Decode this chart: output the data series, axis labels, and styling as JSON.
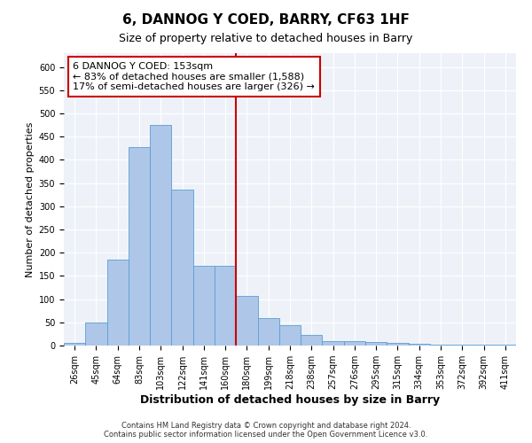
{
  "title": "6, DANNOG Y COED, BARRY, CF63 1HF",
  "subtitle": "Size of property relative to detached houses in Barry",
  "xlabel": "Distribution of detached houses by size in Barry",
  "ylabel": "Number of detached properties",
  "categories": [
    "26sqm",
    "45sqm",
    "64sqm",
    "83sqm",
    "103sqm",
    "122sqm",
    "141sqm",
    "160sqm",
    "180sqm",
    "199sqm",
    "218sqm",
    "238sqm",
    "257sqm",
    "276sqm",
    "295sqm",
    "315sqm",
    "334sqm",
    "353sqm",
    "372sqm",
    "392sqm",
    "411sqm"
  ],
  "values": [
    5,
    50,
    185,
    428,
    475,
    336,
    172,
    172,
    107,
    60,
    43,
    22,
    10,
    10,
    8,
    5,
    3,
    2,
    1,
    2,
    1
  ],
  "bar_color": "#aec6e8",
  "bar_edge_color": "#5a9fd4",
  "vline_color": "#cc0000",
  "annotation_line1": "6 DANNOG Y COED: 153sqm",
  "annotation_line2": "← 83% of detached houses are smaller (1,588)",
  "annotation_line3": "17% of semi-detached houses are larger (326) →",
  "annotation_box_color": "#ffffff",
  "annotation_box_edge": "#cc0000",
  "ylim": [
    0,
    630
  ],
  "yticks": [
    0,
    50,
    100,
    150,
    200,
    250,
    300,
    350,
    400,
    450,
    500,
    550,
    600
  ],
  "footer": "Contains HM Land Registry data © Crown copyright and database right 2024.\nContains public sector information licensed under the Open Government Licence v3.0.",
  "fig_facecolor": "#ffffff",
  "background_color": "#eef2f8",
  "grid_color": "#ffffff",
  "title_fontsize": 11,
  "subtitle_fontsize": 9,
  "tick_fontsize": 7,
  "ylabel_fontsize": 8,
  "xlabel_fontsize": 9,
  "footer_fontsize": 6
}
